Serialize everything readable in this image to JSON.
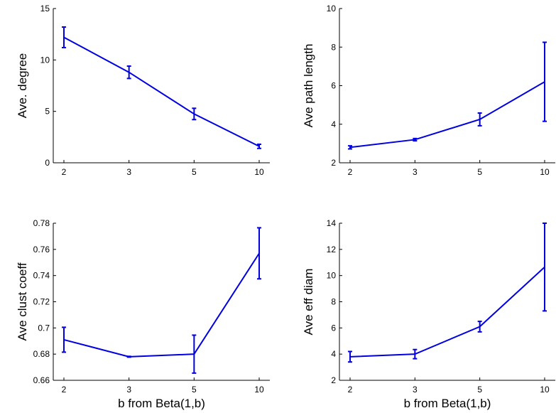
{
  "chart_data": [
    {
      "type": "line",
      "categories": [
        "2",
        "3",
        "5",
        "10"
      ],
      "ylabel": "Ave. degree",
      "xlabel": "",
      "ylim": [
        0,
        15
      ],
      "yticks": [
        0,
        5,
        10,
        15
      ],
      "series": [
        {
          "values": [
            12.2,
            8.8,
            4.75,
            1.6
          ],
          "errors": [
            1.0,
            0.6,
            0.55,
            0.2
          ]
        }
      ]
    },
    {
      "type": "line",
      "categories": [
        "2",
        "3",
        "5",
        "10"
      ],
      "ylabel": "Ave path length",
      "xlabel": "",
      "ylim": [
        2,
        10
      ],
      "yticks": [
        2,
        4,
        6,
        8,
        10
      ],
      "series": [
        {
          "values": [
            2.8,
            3.2,
            4.25,
            6.2
          ],
          "errors": [
            0.08,
            0.06,
            0.33,
            2.05
          ]
        }
      ]
    },
    {
      "type": "line",
      "categories": [
        "2",
        "3",
        "5",
        "10"
      ],
      "ylabel": "Ave clust coeff",
      "xlabel": "b from Beta(1,b)",
      "ylim": [
        0.66,
        0.78
      ],
      "yticks": [
        0.66,
        0.68,
        0.7,
        0.72,
        0.74,
        0.76,
        0.78
      ],
      "ytick_labels": [
        "0.66",
        "0.68",
        "0.7",
        "0.72",
        "0.74",
        "0.76",
        "0.78"
      ],
      "series": [
        {
          "values": [
            0.691,
            0.678,
            0.68,
            0.757
          ],
          "errors": [
            0.0095,
            0.0003,
            0.0145,
            0.0195
          ]
        }
      ]
    },
    {
      "type": "line",
      "categories": [
        "2",
        "3",
        "5",
        "10"
      ],
      "ylabel": "Ave eff diam",
      "xlabel": "b from Beta(1,b)",
      "ylim": [
        2,
        14
      ],
      "yticks": [
        2,
        4,
        6,
        8,
        10,
        12,
        14
      ],
      "series": [
        {
          "values": [
            3.8,
            4.0,
            6.1,
            10.65
          ],
          "errors": [
            0.4,
            0.35,
            0.4,
            3.35
          ]
        }
      ]
    }
  ],
  "colors": {
    "series": "#0000e0",
    "axis": "#000000"
  }
}
